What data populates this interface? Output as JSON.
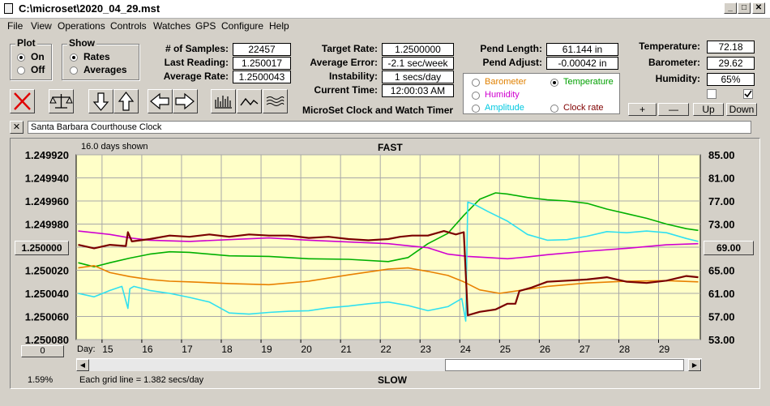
{
  "window": {
    "title": "C:\\microset\\2020_04_29.mst"
  },
  "menu": [
    "File",
    "View",
    "Operations",
    "Controls",
    "Watches",
    "GPS",
    "Configure",
    "Help"
  ],
  "plot_group": {
    "label": "Plot",
    "options": [
      "On",
      "Off"
    ],
    "selected": "On"
  },
  "show_group": {
    "label": "Show",
    "options": [
      "Rates",
      "Averages"
    ],
    "selected": "Rates"
  },
  "stats": {
    "samples_label": "# of Samples:",
    "samples": "22457",
    "last_reading_label": "Last Reading:",
    "last_reading": "1.250017",
    "average_rate_label": "Average Rate:",
    "average_rate": "1.2500043"
  },
  "rates": {
    "target_rate_label": "Target Rate:",
    "target_rate": "1.2500000",
    "average_error_label": "Average Error:",
    "average_error": "-2.1 sec/week",
    "instability_label": "Instability:",
    "instability": "1 secs/day",
    "current_time_label": "Current Time:",
    "current_time": "12:00:03 AM"
  },
  "app_name": "MicroSet Clock and Watch Timer",
  "pendulum": {
    "length_label": "Pend Length:",
    "length": "61.144 in",
    "adjust_label": "Pend Adjust:",
    "adjust": "-0.00042 in"
  },
  "overlay_options": [
    {
      "label": "Barometer",
      "color": "#e08000",
      "selected": false
    },
    {
      "label": "Temperature",
      "color": "#00a000",
      "selected": true
    },
    {
      "label": "Humidity",
      "color": "#d000d0",
      "selected": false
    },
    {
      "label": "Amplitude",
      "color": "#00c8e0",
      "selected": false
    },
    {
      "label": "Clock rate",
      "color": "#800000",
      "selected": false
    }
  ],
  "environment": {
    "temperature_label": "Temperature:",
    "temperature": "72.18",
    "barometer_label": "Barometer:",
    "barometer": "29.62",
    "humidity_label": "Humidity:",
    "humidity": "65%"
  },
  "adjust_buttons": [
    "+",
    "—",
    "Up",
    "Down"
  ],
  "watch_name": "Santa Barbara Courthouse Clock",
  "close_label": "✕",
  "left_reference": "1.250000",
  "right_reference": "69.00",
  "left_offset_button": "0",
  "bottom_percent": "1.59%",
  "chart_data": {
    "type": "line",
    "days_shown": "16.0 days shown",
    "top_label": "FAST",
    "bottom_label": "SLOW",
    "grid_note": "Each grid line = 1.382 secs/day",
    "day_label": "Day:",
    "x_ticks": [
      "15",
      "16",
      "17",
      "18",
      "19",
      "20",
      "21",
      "22",
      "23",
      "24",
      "25",
      "26",
      "27",
      "28",
      "29"
    ],
    "y_left_ticks": [
      "1.249920",
      "1.249940",
      "1.249960",
      "1.249980",
      "1.250000",
      "1.250020",
      "1.250040",
      "1.250060",
      "1.250080"
    ],
    "y_left_range": [
      1.24992,
      1.25008
    ],
    "y_right_ticks": [
      "85.00",
      "81.00",
      "77.00",
      "73.00",
      "69.00",
      "65.00",
      "61.00",
      "57.00",
      "53.00"
    ],
    "y_right_range": [
      53,
      85
    ],
    "x_range": [
      14.15,
      29.85
    ],
    "grid": true,
    "series": [
      {
        "color": "#00b000",
        "axis": "right",
        "x": [
          14.2,
          14.6,
          15.0,
          15.5,
          16.0,
          16.5,
          17.0,
          18.0,
          19.0,
          20.0,
          21.0,
          22.0,
          22.5,
          23.0,
          23.5,
          23.9,
          24.3,
          24.7,
          25.0,
          25.5,
          26.0,
          26.5,
          27.0,
          27.5,
          28.0,
          28.5,
          29.0,
          29.5,
          29.8
        ],
        "y": [
          66.3,
          65.6,
          66.3,
          67.1,
          67.8,
          68.2,
          68.1,
          67.5,
          67.4,
          67.0,
          66.9,
          66.5,
          67.2,
          69.6,
          71.4,
          74.5,
          77.3,
          78.4,
          78.2,
          77.6,
          77.2,
          77.0,
          76.6,
          75.6,
          74.8,
          74.0,
          73.0,
          72.2,
          71.9
        ]
      },
      {
        "color": "#d000d0",
        "axis": "right",
        "x": [
          14.2,
          15.0,
          15.5,
          16.0,
          17.0,
          18.0,
          19.0,
          20.0,
          21.0,
          22.0,
          23.0,
          23.5,
          24.0,
          24.5,
          25.0,
          25.5,
          26.0,
          27.0,
          28.0,
          29.0,
          29.8
        ],
        "y": [
          71.8,
          71.2,
          70.6,
          70.2,
          70.0,
          70.3,
          70.6,
          70.2,
          69.9,
          69.6,
          68.9,
          67.8,
          67.4,
          67.2,
          67.0,
          67.3,
          67.7,
          68.3,
          68.8,
          69.4,
          69.6
        ]
      },
      {
        "color": "#e88000",
        "axis": "right",
        "x": [
          14.2,
          14.6,
          15.0,
          15.5,
          16.0,
          16.5,
          17.0,
          18.0,
          19.0,
          20.0,
          21.0,
          22.0,
          22.5,
          23.0,
          23.5,
          23.9,
          24.3,
          24.8,
          25.5,
          26.0,
          27.0,
          28.0,
          29.0,
          29.8
        ],
        "y": [
          65.4,
          65.8,
          64.6,
          63.9,
          63.4,
          63.1,
          63.0,
          62.7,
          62.5,
          63.1,
          64.2,
          65.2,
          65.4,
          64.8,
          64.1,
          63.0,
          61.6,
          61.0,
          61.7,
          62.2,
          62.8,
          63.1,
          63.2,
          63.0
        ]
      },
      {
        "color": "#30e0f0",
        "axis": "right",
        "x": [
          14.2,
          14.6,
          15.0,
          15.3,
          15.45,
          15.5,
          15.6,
          16.0,
          16.5,
          17.0,
          17.5,
          18.0,
          18.5,
          19.0,
          19.5,
          20.0,
          20.5,
          21.0,
          21.5,
          22.0,
          22.5,
          23.0,
          23.5,
          23.85,
          23.95,
          24.0,
          24.2,
          24.5,
          25.0,
          25.5,
          26.0,
          26.5,
          27.0,
          27.5,
          28.0,
          28.5,
          29.0,
          29.5,
          29.8
        ],
        "y": [
          61.0,
          60.4,
          61.5,
          62.2,
          58.4,
          61.8,
          62.2,
          61.5,
          61.0,
          60.3,
          59.5,
          57.6,
          57.4,
          57.7,
          57.9,
          58.0,
          58.5,
          58.8,
          59.2,
          59.5,
          58.9,
          58.0,
          58.7,
          60.1,
          56.2,
          76.8,
          76.3,
          75.2,
          73.5,
          71.2,
          70.2,
          70.3,
          70.9,
          71.7,
          71.5,
          71.8,
          71.5,
          70.5,
          70.0
        ]
      },
      {
        "color": "#7a0000",
        "axis": "left",
        "width": 2.2,
        "x": [
          14.2,
          14.6,
          15.0,
          15.4,
          15.45,
          15.55,
          16.0,
          16.5,
          17.0,
          17.5,
          18.0,
          18.5,
          19.0,
          19.5,
          20.0,
          20.5,
          21.0,
          21.5,
          22.0,
          22.3,
          22.6,
          23.0,
          23.4,
          23.7,
          23.9,
          24.0,
          24.3,
          24.7,
          25.0,
          25.2,
          25.3,
          25.6,
          26.0,
          26.5,
          27.0,
          27.5,
          28.0,
          28.5,
          29.0,
          29.5,
          29.8
        ],
        "y": [
          1.249998,
          1.250001,
          1.249998,
          1.249999,
          1.249987,
          1.249995,
          1.249993,
          1.24999,
          1.249991,
          1.249989,
          1.249991,
          1.249989,
          1.24999,
          1.24999,
          1.249992,
          1.249991,
          1.249993,
          1.249994,
          1.249993,
          1.249991,
          1.24999,
          1.24999,
          1.249986,
          1.249989,
          1.249987,
          1.250059,
          1.250056,
          1.250054,
          1.250049,
          1.250049,
          1.250038,
          1.250035,
          1.25003,
          1.250029,
          1.250028,
          1.250026,
          1.25003,
          1.250031,
          1.250029,
          1.250025,
          1.250026
        ]
      }
    ]
  }
}
